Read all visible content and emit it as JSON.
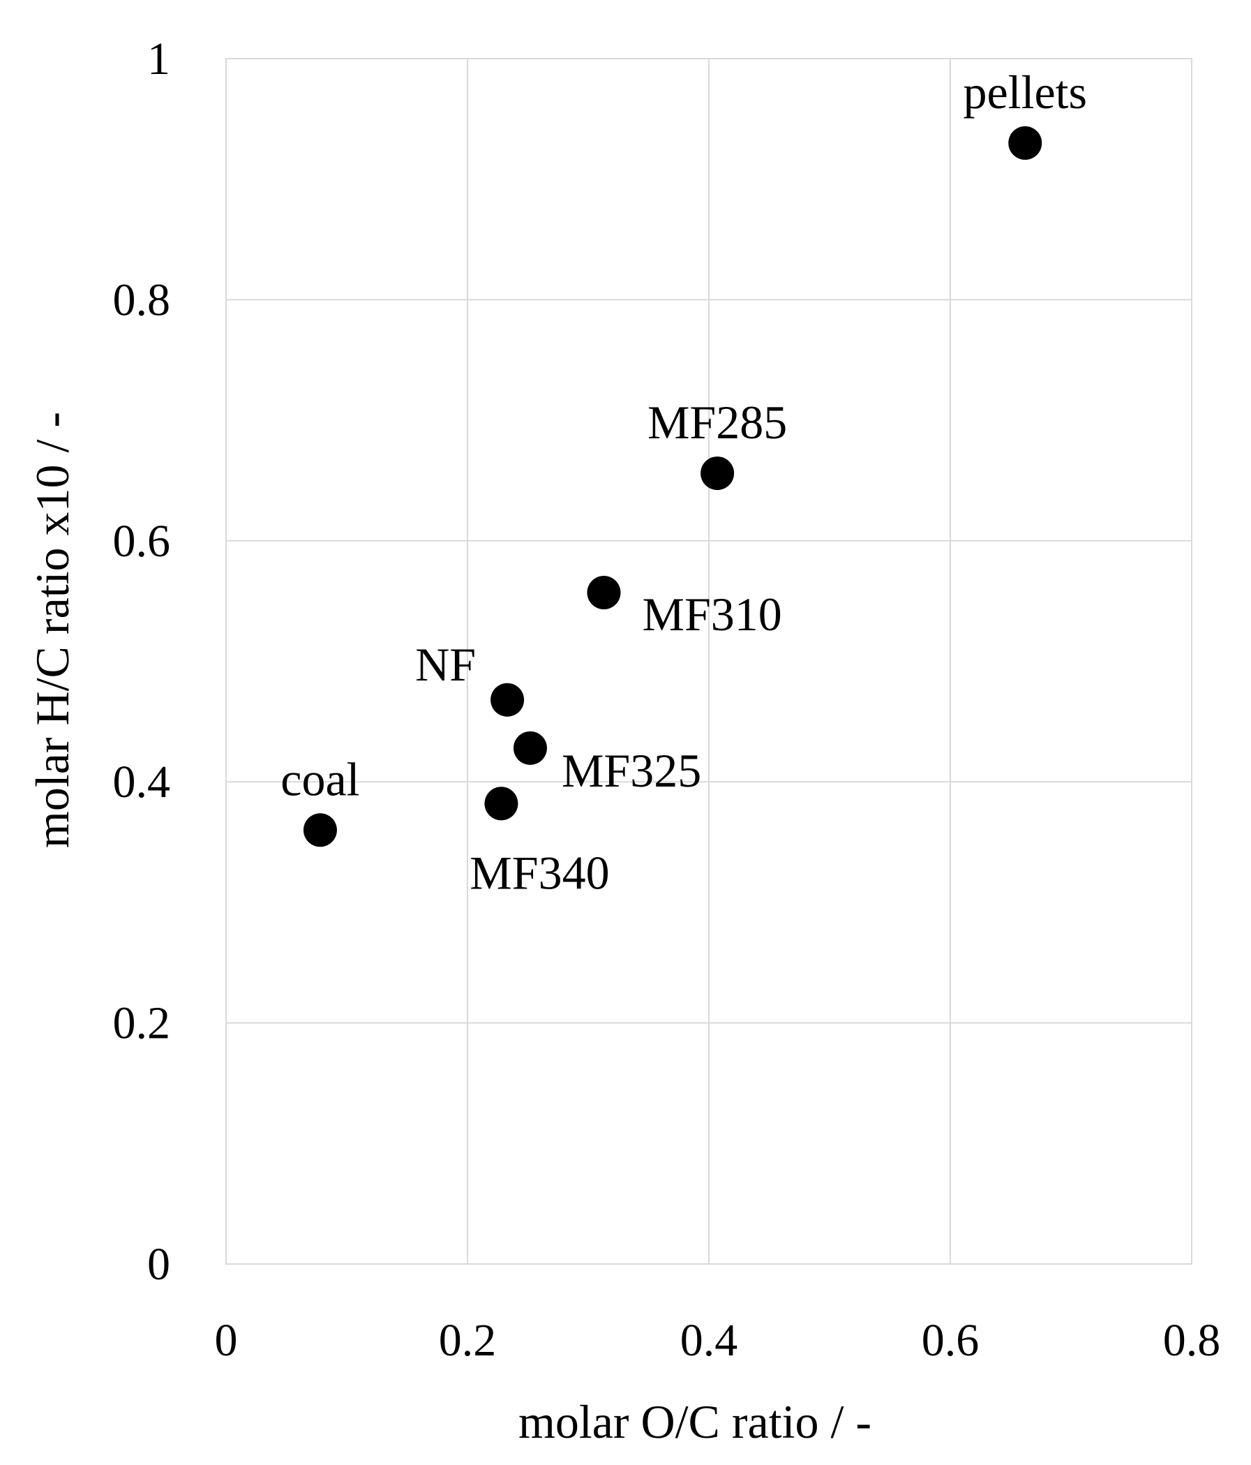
{
  "chart_data": {
    "type": "scatter",
    "title": "",
    "xlabel": "molar O/C ratio / -",
    "ylabel": "molar H/C ratio x10 / -",
    "xlim": [
      0,
      0.8
    ],
    "ylim": [
      0,
      1
    ],
    "xticks": [
      0,
      0.2,
      0.4,
      0.6,
      0.8
    ],
    "yticks": [
      0,
      0.2,
      0.4,
      0.6,
      0.8,
      1
    ],
    "xtick_labels": [
      "0",
      "0.2",
      "0.4",
      "0.6",
      "0.8"
    ],
    "ytick_labels": [
      "0",
      "0.2",
      "0.4",
      "0.6",
      "0.8",
      "1"
    ],
    "grid": true,
    "marker_color": "#000000",
    "points": [
      {
        "label": "pellets",
        "x": 0.662,
        "y": 0.93,
        "label_pos": "above"
      },
      {
        "label": "MF285",
        "x": 0.407,
        "y": 0.656,
        "label_pos": "above"
      },
      {
        "label": "MF310",
        "x": 0.313,
        "y": 0.557,
        "label_pos": "right-below"
      },
      {
        "label": "NF",
        "x": 0.233,
        "y": 0.468,
        "label_pos": "left-above"
      },
      {
        "label": "MF325",
        "x": 0.252,
        "y": 0.428,
        "label_pos": "right"
      },
      {
        "label": "MF340",
        "x": 0.228,
        "y": 0.382,
        "label_pos": "below"
      },
      {
        "label": "coal",
        "x": 0.078,
        "y": 0.36,
        "label_pos": "above"
      }
    ]
  }
}
